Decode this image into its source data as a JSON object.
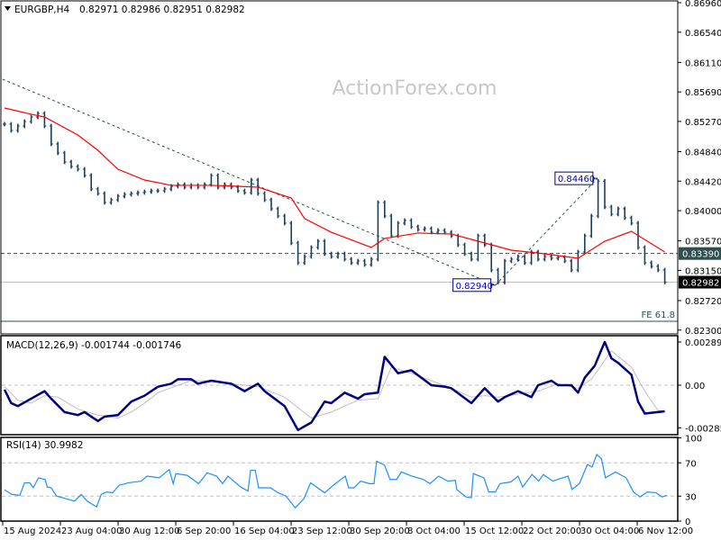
{
  "header": {
    "symbol_label": "EURGBP,H4",
    "ohlc_label": "0.82971 0.82986 0.82951 0.82982",
    "macd_label": "MACD(12,26,9) -0.001744 -0.001746",
    "rsi_label": "RSI(14) 30.9982"
  },
  "watermark": "ActionForex.com",
  "colors": {
    "bars": "#1b3f5e",
    "moving_average": "#ff0000",
    "macd_main": "#000080",
    "macd_signal": "#c0c0c0",
    "rsi": "#1e90ff",
    "level_line": "#2f4f4f",
    "bid_line": "#c0c0c0",
    "annotation": "#000080"
  },
  "chart_data": [
    {
      "type": "ohlc",
      "symbol": "EURGBP",
      "timeframe": "H4",
      "ylim": [
        0.823,
        0.8696
      ],
      "price_ticks": [
        "0.86960",
        "0.86540",
        "0.86110",
        "0.85690",
        "0.85270",
        "0.84840",
        "0.84420",
        "0.84000",
        "0.83570",
        "0.83150",
        "0.82720",
        "0.82300"
      ],
      "closes": [
        0.85231,
        0.85141,
        0.85205,
        0.85269,
        0.85333,
        0.85384,
        0.85205,
        0.84949,
        0.84821,
        0.84693,
        0.84629,
        0.8459,
        0.84501,
        0.84308,
        0.84244,
        0.84116,
        0.84154,
        0.84206,
        0.84231,
        0.84244,
        0.84257,
        0.8427,
        0.84283,
        0.84283,
        0.84308,
        0.84347,
        0.84372,
        0.84334,
        0.8436,
        0.84334,
        0.84372,
        0.84501,
        0.84334,
        0.84372,
        0.84334,
        0.84283,
        0.84257,
        0.84436,
        0.84244,
        0.84154,
        0.84027,
        0.83924,
        0.83822,
        0.8354,
        0.83258,
        0.83347,
        0.83476,
        0.83565,
        0.83386,
        0.83347,
        0.83386,
        0.83309,
        0.83258,
        0.83283,
        0.83232,
        0.83309,
        0.84116,
        0.83924,
        0.83642,
        0.83822,
        0.8386,
        0.8377,
        0.83732,
        0.83745,
        0.83693,
        0.83719,
        0.83693,
        0.83642,
        0.83514,
        0.83386,
        0.83309,
        0.83642,
        0.83514,
        0.83155,
        0.8298,
        0.83283,
        0.83309,
        0.83347,
        0.83258,
        0.83412,
        0.83309,
        0.83347,
        0.83322,
        0.83335,
        0.83283,
        0.83155,
        0.83412,
        0.83642,
        0.83924,
        0.8442,
        0.84052,
        0.8395,
        0.84027,
        0.83898,
        0.83822,
        0.83476,
        0.83258,
        0.83207,
        0.83155,
        0.82982
      ],
      "moving_average": [
        [
          0,
          0.85461
        ],
        [
          4,
          0.85372
        ],
        [
          6,
          0.85333
        ],
        [
          11,
          0.85077
        ],
        [
          14,
          0.84859
        ],
        [
          17,
          0.8459
        ],
        [
          21,
          0.84436
        ],
        [
          25,
          0.8436
        ],
        [
          31,
          0.8436
        ],
        [
          35,
          0.84347
        ],
        [
          38,
          0.84334
        ],
        [
          43,
          0.8418
        ],
        [
          45,
          0.83886
        ],
        [
          49,
          0.83693
        ],
        [
          55,
          0.83476
        ],
        [
          57,
          0.83604
        ],
        [
          62,
          0.83681
        ],
        [
          67,
          0.83668
        ],
        [
          70,
          0.83591
        ],
        [
          76,
          0.83437
        ],
        [
          81,
          0.83386
        ],
        [
          86,
          0.83322
        ],
        [
          90,
          0.83565
        ],
        [
          94,
          0.83706
        ],
        [
          99,
          0.83412
        ]
      ],
      "trendlines": [
        {
          "from": [
            -0.3,
            0.85871
          ],
          "to": [
            73.6,
            0.8294
          ]
        },
        {
          "from": [
            73.6,
            0.8294
          ],
          "to": [
            88.9,
            0.8446
          ]
        }
      ],
      "annotations": [
        {
          "text": "0.84460",
          "bar": 88.9,
          "price": 0.8446
        },
        {
          "text": "0.82940",
          "bar": 73.6,
          "price": 0.8294
        }
      ],
      "horizontal_levels": [
        {
          "price": 0.8339,
          "label": "0.83390",
          "style": "dashed"
        },
        {
          "price": 0.82982,
          "label": "0.82982",
          "style": "bid"
        },
        {
          "price": 0.82425,
          "label": "FE 61.8",
          "style": "solid"
        }
      ]
    },
    {
      "type": "line",
      "name": "MACD(12,26,9)",
      "ylim": [
        -0.002852,
        0.002893
      ],
      "ticks": [
        "0.002893",
        "0.00",
        "-0.002852"
      ],
      "main": [
        [
          0,
          -0.0003
        ],
        [
          1,
          -0.0012
        ],
        [
          2,
          -0.0014
        ],
        [
          4,
          -0.0009
        ],
        [
          6,
          -0.0004
        ],
        [
          7,
          -0.0009
        ],
        [
          9,
          -0.0018
        ],
        [
          11,
          -0.002
        ],
        [
          12,
          -0.0018
        ],
        [
          14,
          -0.0024
        ],
        [
          15,
          -0.0021
        ],
        [
          17,
          -0.002
        ],
        [
          19,
          -0.0011
        ],
        [
          21,
          -0.0007
        ],
        [
          23,
          -0.0001
        ],
        [
          25,
          0.0001
        ],
        [
          26,
          0.0004
        ],
        [
          28,
          0.0004
        ],
        [
          29,
          0.0001
        ],
        [
          31,
          0.0003
        ],
        [
          34,
          0.0001
        ],
        [
          36,
          -0.0004
        ],
        [
          38,
          0.0001
        ],
        [
          39,
          -0.0004
        ],
        [
          42,
          -0.0014
        ],
        [
          44,
          -0.003
        ],
        [
          46,
          -0.0025
        ],
        [
          48,
          -0.0011
        ],
        [
          49,
          -0.0012
        ],
        [
          51,
          -0.0005
        ],
        [
          53,
          -0.0009
        ],
        [
          54,
          -0.0006
        ],
        [
          56,
          -0.0005
        ],
        [
          57,
          0.0019
        ],
        [
          59,
          0.0008
        ],
        [
          61,
          0.001
        ],
        [
          64,
          0.0
        ],
        [
          66,
          -0.0001
        ],
        [
          67,
          -0.0002
        ],
        [
          70,
          -0.0012
        ],
        [
          72,
          -0.0002
        ],
        [
          74,
          -0.0011
        ],
        [
          75,
          -0.0008
        ],
        [
          77,
          -0.0004
        ],
        [
          79,
          -0.0008
        ],
        [
          80,
          0.0
        ],
        [
          82,
          0.0003
        ],
        [
          83,
          0.0
        ],
        [
          85,
          0.0
        ],
        [
          86,
          -0.0005
        ],
        [
          87,
          0.0005
        ],
        [
          88.5,
          0.0013
        ],
        [
          90,
          0.0029
        ],
        [
          91,
          0.0018
        ],
        [
          92,
          0.0015
        ],
        [
          94,
          0.0007
        ],
        [
          95,
          -0.0011
        ],
        [
          96,
          -0.0019
        ],
        [
          99,
          -0.001744
        ]
      ],
      "signal": [
        [
          0,
          -0.0001
        ],
        [
          2,
          -0.001
        ],
        [
          4,
          -0.0012
        ],
        [
          6,
          -0.0007
        ],
        [
          8,
          -0.0008
        ],
        [
          11,
          -0.0016
        ],
        [
          14,
          -0.002
        ],
        [
          17,
          -0.0022
        ],
        [
          19,
          -0.0018
        ],
        [
          21,
          -0.0012
        ],
        [
          23,
          -0.0005
        ],
        [
          26,
          0.0
        ],
        [
          28,
          0.0003
        ],
        [
          31,
          0.0003
        ],
        [
          34,
          0.0001
        ],
        [
          38,
          -0.0001
        ],
        [
          42,
          -0.0008
        ],
        [
          46,
          -0.0022
        ],
        [
          49,
          -0.0018
        ],
        [
          53,
          -0.001
        ],
        [
          56,
          -0.0009
        ],
        [
          58,
          0.0012
        ],
        [
          61,
          0.0008
        ],
        [
          64,
          0.0003
        ],
        [
          67,
          -0.0002
        ],
        [
          70,
          -0.0008
        ],
        [
          72,
          -0.0007
        ],
        [
          74,
          -0.0008
        ],
        [
          77,
          -0.0006
        ],
        [
          80,
          -0.0004
        ],
        [
          83,
          0.0001
        ],
        [
          86,
          -0.0002
        ],
        [
          88,
          0.0004
        ],
        [
          91,
          0.0023
        ],
        [
          94,
          0.0012
        ],
        [
          96,
          -0.0004
        ],
        [
          98,
          -0.0017
        ],
        [
          99,
          -0.001746
        ]
      ]
    },
    {
      "type": "line",
      "name": "RSI(14)",
      "ylim": [
        0,
        100
      ],
      "ticks": [
        "100",
        "70",
        "30",
        "0"
      ],
      "levels": [
        70,
        30
      ],
      "values": [
        [
          0,
          37.6
        ],
        [
          1.1,
          32
        ],
        [
          2.3,
          31
        ],
        [
          3,
          46
        ],
        [
          3.8,
          46
        ],
        [
          4.3,
          40
        ],
        [
          5.1,
          52
        ],
        [
          6.1,
          50
        ],
        [
          6.4,
          41
        ],
        [
          7,
          40
        ],
        [
          7.8,
          30
        ],
        [
          9.2,
          27
        ],
        [
          10.5,
          24
        ],
        [
          11.5,
          32
        ],
        [
          12.4,
          24
        ],
        [
          13.8,
          17
        ],
        [
          14.5,
          32
        ],
        [
          15.3,
          35
        ],
        [
          16.2,
          34
        ],
        [
          17.2,
          43
        ],
        [
          18.6,
          46
        ],
        [
          20.5,
          48
        ],
        [
          21.4,
          54
        ],
        [
          23.2,
          52
        ],
        [
          24.7,
          62
        ],
        [
          25.3,
          45
        ],
        [
          25.7,
          57
        ],
        [
          27.4,
          55
        ],
        [
          29.1,
          45
        ],
        [
          30.4,
          58
        ],
        [
          31.8,
          54
        ],
        [
          32.7,
          45
        ],
        [
          33.5,
          54
        ],
        [
          35.4,
          41
        ],
        [
          36.5,
          36
        ],
        [
          36.9,
          61
        ],
        [
          37.6,
          61
        ],
        [
          38.1,
          40
        ],
        [
          39.9,
          40
        ],
        [
          40.8,
          35
        ],
        [
          42.2,
          30
        ],
        [
          43.6,
          16
        ],
        [
          44.9,
          27
        ],
        [
          45.9,
          46
        ],
        [
          48,
          34
        ],
        [
          49.3,
          43
        ],
        [
          51.1,
          54
        ],
        [
          51.6,
          40
        ],
        [
          52.4,
          40
        ],
        [
          53.4,
          48
        ],
        [
          54.7,
          45
        ],
        [
          55.4,
          45
        ],
        [
          55.8,
          72
        ],
        [
          57,
          67
        ],
        [
          57.8,
          50
        ],
        [
          58.8,
          50
        ],
        [
          59.5,
          59
        ],
        [
          61.1,
          54
        ],
        [
          62.8,
          50
        ],
        [
          63.8,
          45
        ],
        [
          65.1,
          54
        ],
        [
          66.5,
          48
        ],
        [
          67.6,
          49
        ],
        [
          67.8,
          38
        ],
        [
          69.2,
          29
        ],
        [
          70,
          28
        ],
        [
          70.3,
          57
        ],
        [
          71.9,
          52
        ],
        [
          72.6,
          35
        ],
        [
          73.6,
          35
        ],
        [
          74.3,
          45
        ],
        [
          75.9,
          47
        ],
        [
          77,
          54
        ],
        [
          77.7,
          41
        ],
        [
          79.1,
          56
        ],
        [
          80.1,
          48
        ],
        [
          80.8,
          56
        ],
        [
          82.2,
          48
        ],
        [
          84.5,
          54
        ],
        [
          85.1,
          38
        ],
        [
          86.2,
          45
        ],
        [
          87.4,
          68
        ],
        [
          88.1,
          65
        ],
        [
          88.8,
          80
        ],
        [
          89.5,
          75
        ],
        [
          90.1,
          52
        ],
        [
          91.6,
          59
        ],
        [
          93.2,
          52
        ],
        [
          94.3,
          35
        ],
        [
          95.3,
          29
        ],
        [
          96.4,
          35
        ],
        [
          97.7,
          34
        ],
        [
          98.6,
          29
        ],
        [
          99.3,
          30.9982
        ]
      ]
    }
  ],
  "time_axis": {
    "labels": [
      "15 Aug 2024",
      "23 Aug 04:00",
      "30 Aug 12:00",
      "6 Sep 20:00",
      "16 Sep 04:00",
      "23 Sep 12:00",
      "30 Sep 20:00",
      "8 Oct 04:00",
      "15 Oct 12:00",
      "22 Oct 20:00",
      "30 Oct 04:00",
      "6 Nov 12:00"
    ]
  }
}
